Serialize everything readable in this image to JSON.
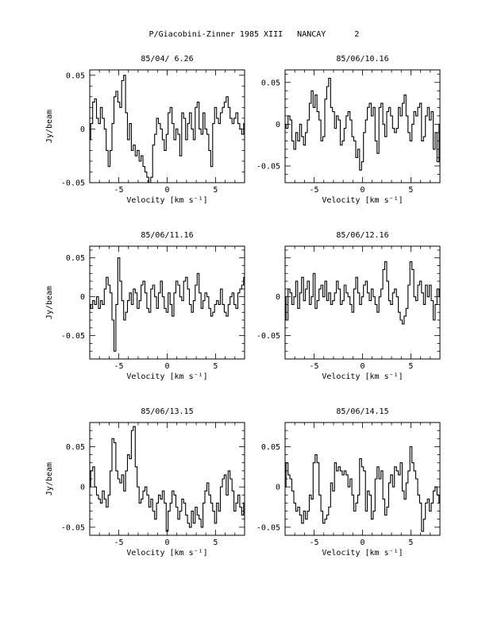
{
  "title": "P/Giacobini-Zinner 1985 XIII   NANCAY      2",
  "chart_data": [
    {
      "type": "line",
      "title": "85/04/ 6.26",
      "xlabel": "Velocity [km s⁻¹]",
      "ylabel": "Jy/beam",
      "xlim": [
        -8,
        8
      ],
      "ylim": [
        -0.05,
        0.055
      ],
      "xticks": [
        "-5",
        "0",
        "5"
      ],
      "yticks": [
        "0.05",
        "0",
        "-0.05"
      ],
      "ytick_values": [
        0.05,
        0,
        -0.05
      ],
      "x": [
        -8,
        -7.8,
        -7.6,
        -7.4,
        -7.2,
        -7,
        -6.8,
        -6.6,
        -6.4,
        -6.2,
        -6,
        -5.8,
        -5.6,
        -5.4,
        -5.2,
        -5,
        -4.8,
        -4.6,
        -4.4,
        -4.2,
        -4,
        -3.8,
        -3.6,
        -3.4,
        -3.2,
        -3,
        -2.8,
        -2.6,
        -2.4,
        -2.2,
        -2,
        -1.8,
        -1.6,
        -1.4,
        -1.2,
        -1,
        -0.8,
        -0.6,
        -0.4,
        -0.2,
        0,
        0.2,
        0.4,
        0.6,
        0.8,
        1,
        1.2,
        1.4,
        1.6,
        1.8,
        2,
        2.2,
        2.4,
        2.6,
        2.8,
        3,
        3.2,
        3.4,
        3.6,
        3.8,
        4,
        4.2,
        4.4,
        4.6,
        4.8,
        5,
        5.2,
        5.4,
        5.6,
        5.8,
        6,
        6.2,
        6.4,
        6.6,
        6.8,
        7,
        7.2,
        7.4,
        7.6,
        7.8,
        8
      ],
      "y": [
        -0.01,
        0.005,
        0.025,
        0.028,
        0.01,
        0.005,
        0.02,
        0.01,
        0.0,
        -0.02,
        -0.035,
        -0.02,
        0.005,
        0.03,
        0.035,
        0.025,
        0.02,
        0.045,
        0.05,
        0.015,
        -0.01,
        0.005,
        -0.02,
        -0.015,
        -0.025,
        -0.02,
        -0.03,
        -0.025,
        -0.035,
        -0.04,
        -0.045,
        -0.05,
        -0.045,
        -0.015,
        -0.005,
        0.01,
        0.005,
        0.0,
        -0.01,
        -0.02,
        -0.005,
        0.015,
        0.02,
        0.005,
        -0.01,
        0.0,
        -0.005,
        -0.025,
        0.015,
        0.01,
        -0.01,
        0.005,
        0.015,
        0.0,
        -0.01,
        0.02,
        0.025,
        0.0,
        -0.005,
        0.015,
        0.0,
        -0.005,
        -0.02,
        -0.035,
        0.005,
        0.02,
        0.01,
        0.005,
        0.015,
        0.02,
        0.025,
        0.03,
        0.02,
        0.01,
        0.005,
        0.01,
        0.015,
        0.005,
        0.0,
        -0.005,
        0.005
      ]
    },
    {
      "type": "line",
      "title": "85/06/10.16",
      "xlabel": "Velocity [km s⁻¹]",
      "ylabel": "",
      "xlim": [
        -8,
        8
      ],
      "ylim": [
        -0.07,
        0.065
      ],
      "xticks": [
        "-5",
        "0",
        "5"
      ],
      "yticks": [
        "0.05",
        "0",
        "-0.05"
      ],
      "ytick_values": [
        0.05,
        0,
        -0.05
      ],
      "x": [
        -8,
        -7.8,
        -7.6,
        -7.4,
        -7.2,
        -7,
        -6.8,
        -6.6,
        -6.4,
        -6.2,
        -6,
        -5.8,
        -5.6,
        -5.4,
        -5.2,
        -5,
        -4.8,
        -4.6,
        -4.4,
        -4.2,
        -4,
        -3.8,
        -3.6,
        -3.4,
        -3.2,
        -3,
        -2.8,
        -2.6,
        -2.4,
        -2.2,
        -2,
        -1.8,
        -1.6,
        -1.4,
        -1.2,
        -1,
        -0.8,
        -0.6,
        -0.4,
        -0.2,
        0,
        0.2,
        0.4,
        0.6,
        0.8,
        1,
        1.2,
        1.4,
        1.6,
        1.8,
        2,
        2.2,
        2.4,
        2.6,
        2.8,
        3,
        3.2,
        3.4,
        3.6,
        3.8,
        4,
        4.2,
        4.4,
        4.6,
        4.8,
        5,
        5.2,
        5.4,
        5.6,
        5.8,
        6,
        6.2,
        6.4,
        6.6,
        6.8,
        7,
        7.2,
        7.4,
        7.6,
        7.8,
        8
      ],
      "y": [
        0.0,
        -0.005,
        0.01,
        0.005,
        -0.02,
        -0.03,
        -0.01,
        -0.02,
        0.0,
        -0.015,
        -0.025,
        -0.01,
        0.005,
        0.025,
        0.04,
        0.02,
        0.035,
        0.015,
        0.005,
        -0.02,
        -0.015,
        0.03,
        0.045,
        0.055,
        0.02,
        0.015,
        -0.005,
        0.01,
        0.005,
        -0.025,
        -0.02,
        -0.005,
        0.01,
        0.015,
        0.005,
        -0.015,
        -0.02,
        -0.04,
        -0.03,
        -0.055,
        -0.045,
        -0.01,
        0.005,
        0.02,
        0.025,
        0.01,
        0.02,
        -0.02,
        -0.035,
        0.02,
        0.025,
        0.0,
        -0.015,
        0.015,
        0.02,
        0.01,
        -0.005,
        -0.01,
        -0.005,
        0.02,
        0.01,
        0.025,
        0.035,
        0.01,
        -0.01,
        -0.02,
        0.0,
        0.015,
        0.01,
        0.02,
        0.025,
        -0.02,
        -0.015,
        0.01,
        0.02,
        0.005,
        0.015,
        -0.03,
        -0.01,
        -0.045,
        0.0
      ]
    },
    {
      "type": "line",
      "title": "85/06/11.16",
      "xlabel": "Velocity [km s⁻¹]",
      "ylabel": "Jy/beam",
      "xlim": [
        -8,
        8
      ],
      "ylim": [
        -0.08,
        0.065
      ],
      "xticks": [
        "-5",
        "0",
        "5"
      ],
      "yticks": [
        "0.05",
        "0",
        "-0.05"
      ],
      "ytick_values": [
        0.05,
        0,
        -0.05
      ],
      "x": [
        -8,
        -7.8,
        -7.6,
        -7.4,
        -7.2,
        -7,
        -6.8,
        -6.6,
        -6.4,
        -6.2,
        -6,
        -5.8,
        -5.6,
        -5.4,
        -5.2,
        -5,
        -4.8,
        -4.6,
        -4.4,
        -4.2,
        -4,
        -3.8,
        -3.6,
        -3.4,
        -3.2,
        -3,
        -2.8,
        -2.6,
        -2.4,
        -2.2,
        -2,
        -1.8,
        -1.6,
        -1.4,
        -1.2,
        -1,
        -0.8,
        -0.6,
        -0.4,
        -0.2,
        0,
        0.2,
        0.4,
        0.6,
        0.8,
        1,
        1.2,
        1.4,
        1.6,
        1.8,
        2,
        2.2,
        2.4,
        2.6,
        2.8,
        3,
        3.2,
        3.4,
        3.6,
        3.8,
        4,
        4.2,
        4.4,
        4.6,
        4.8,
        5,
        5.2,
        5.4,
        5.6,
        5.8,
        6,
        6.2,
        6.4,
        6.6,
        6.8,
        7,
        7.2,
        7.4,
        7.6,
        7.8,
        8
      ],
      "y": [
        -0.01,
        -0.015,
        -0.005,
        -0.01,
        0.0,
        -0.015,
        -0.005,
        -0.01,
        0.01,
        0.025,
        0.015,
        0.005,
        -0.03,
        -0.07,
        -0.01,
        0.05,
        0.02,
        -0.005,
        -0.03,
        -0.02,
        -0.005,
        0.005,
        -0.01,
        0.01,
        0.005,
        -0.015,
        -0.005,
        0.015,
        0.02,
        0.005,
        -0.015,
        -0.02,
        0.01,
        0.015,
        0.0,
        -0.015,
        0.005,
        0.02,
        0.0,
        -0.015,
        -0.02,
        0.005,
        -0.01,
        -0.025,
        0.005,
        0.02,
        0.015,
        0.0,
        -0.005,
        0.02,
        0.025,
        0.01,
        -0.01,
        -0.02,
        -0.005,
        0.015,
        0.03,
        0.005,
        -0.015,
        -0.005,
        0.005,
        0.0,
        -0.015,
        -0.025,
        -0.02,
        -0.01,
        -0.005,
        -0.01,
        0.01,
        -0.01,
        -0.02,
        -0.025,
        -0.01,
        0.0,
        0.005,
        -0.01,
        -0.015,
        0.005,
        0.01,
        0.015,
        0.025
      ]
    },
    {
      "type": "line",
      "title": "85/06/12.16",
      "xlabel": "Velocity [km s⁻¹]",
      "ylabel": "",
      "xlim": [
        -8,
        8
      ],
      "ylim": [
        -0.08,
        0.065
      ],
      "xticks": [
        "-5",
        "0",
        "5"
      ],
      "yticks": [
        "0",
        "-0.05"
      ],
      "ytick_values": [
        0,
        -0.05
      ],
      "x": [
        -8,
        -7.8,
        -7.6,
        -7.4,
        -7.2,
        -7,
        -6.8,
        -6.6,
        -6.4,
        -6.2,
        -6,
        -5.8,
        -5.6,
        -5.4,
        -5.2,
        -5,
        -4.8,
        -4.6,
        -4.4,
        -4.2,
        -4,
        -3.8,
        -3.6,
        -3.4,
        -3.2,
        -3,
        -2.8,
        -2.6,
        -2.4,
        -2.2,
        -2,
        -1.8,
        -1.6,
        -1.4,
        -1.2,
        -1,
        -0.8,
        -0.6,
        -0.4,
        -0.2,
        0,
        0.2,
        0.4,
        0.6,
        0.8,
        1,
        1.2,
        1.4,
        1.6,
        1.8,
        2,
        2.2,
        2.4,
        2.6,
        2.8,
        3,
        3.2,
        3.4,
        3.6,
        3.8,
        4,
        4.2,
        4.4,
        4.6,
        4.8,
        5,
        5.2,
        5.4,
        5.6,
        5.8,
        6,
        6.2,
        6.4,
        6.6,
        6.8,
        7,
        7.2,
        7.4,
        7.6,
        7.8,
        8
      ],
      "y": [
        0.0,
        -0.03,
        0.01,
        0.005,
        -0.01,
        0.0,
        0.02,
        -0.015,
        0.005,
        0.025,
        -0.005,
        0.01,
        0.02,
        -0.01,
        0.0,
        0.03,
        -0.015,
        -0.005,
        0.01,
        0.015,
        0.0,
        0.02,
        -0.005,
        0.005,
        -0.01,
        -0.005,
        0.005,
        0.02,
        0.01,
        -0.01,
        -0.005,
        0.015,
        0.005,
        0.0,
        -0.01,
        -0.02,
        0.01,
        0.025,
        0.005,
        -0.01,
        0.0,
        0.015,
        0.02,
        0.005,
        -0.005,
        0.01,
        0.0,
        -0.01,
        -0.02,
        0.0,
        0.01,
        0.035,
        0.045,
        0.02,
        -0.005,
        -0.01,
        0.005,
        0.01,
        0.0,
        -0.02,
        -0.03,
        -0.035,
        -0.025,
        -0.015,
        0.015,
        0.045,
        0.035,
        0.0,
        -0.005,
        0.015,
        0.02,
        0.005,
        -0.01,
        0.015,
        0.0,
        0.015,
        -0.005,
        -0.03,
        -0.01,
        0.01,
        0.0
      ]
    },
    {
      "type": "line",
      "title": "85/06/13.15",
      "xlabel": "Velocity [km s⁻¹]",
      "ylabel": "Jy/beam",
      "xlim": [
        -8,
        8
      ],
      "ylim": [
        -0.06,
        0.08
      ],
      "xticks": [
        "-5",
        "0",
        "5"
      ],
      "yticks": [
        "0.05",
        "0",
        "-0.05"
      ],
      "ytick_values": [
        0.05,
        0,
        -0.05
      ],
      "x": [
        -8,
        -7.8,
        -7.6,
        -7.4,
        -7.2,
        -7,
        -6.8,
        -6.6,
        -6.4,
        -6.2,
        -6,
        -5.8,
        -5.6,
        -5.4,
        -5.2,
        -5,
        -4.8,
        -4.6,
        -4.4,
        -4.2,
        -4,
        -3.8,
        -3.6,
        -3.4,
        -3.2,
        -3,
        -2.8,
        -2.6,
        -2.4,
        -2.2,
        -2,
        -1.8,
        -1.6,
        -1.4,
        -1.2,
        -1,
        -0.8,
        -0.6,
        -0.4,
        -0.2,
        0,
        0.2,
        0.4,
        0.6,
        0.8,
        1,
        1.2,
        1.4,
        1.6,
        1.8,
        2,
        2.2,
        2.4,
        2.6,
        2.8,
        3,
        3.2,
        3.4,
        3.6,
        3.8,
        4,
        4.2,
        4.4,
        4.6,
        4.8,
        5,
        5.2,
        5.4,
        5.6,
        5.8,
        6,
        6.2,
        6.4,
        6.6,
        6.8,
        7,
        7.2,
        7.4,
        7.6,
        7.8,
        8
      ],
      "y": [
        0.0,
        0.02,
        0.025,
        0.0,
        -0.01,
        -0.015,
        -0.02,
        -0.005,
        -0.015,
        -0.025,
        -0.01,
        0.02,
        0.06,
        0.055,
        0.02,
        0.01,
        0.005,
        0.015,
        -0.005,
        0.02,
        0.04,
        0.035,
        0.07,
        0.075,
        0.025,
        0.0,
        -0.02,
        -0.015,
        -0.005,
        0.0,
        -0.01,
        -0.025,
        -0.015,
        -0.03,
        -0.04,
        -0.02,
        -0.01,
        -0.015,
        -0.005,
        -0.02,
        -0.055,
        -0.03,
        -0.02,
        -0.005,
        -0.01,
        -0.025,
        -0.04,
        -0.03,
        -0.015,
        -0.02,
        -0.035,
        -0.045,
        -0.05,
        -0.03,
        -0.045,
        -0.025,
        -0.035,
        -0.04,
        -0.05,
        -0.02,
        -0.005,
        0.005,
        -0.01,
        -0.02,
        -0.03,
        -0.045,
        -0.02,
        -0.03,
        0.0,
        0.01,
        0.015,
        -0.01,
        0.02,
        0.01,
        -0.005,
        -0.03,
        -0.02,
        -0.01,
        -0.025,
        -0.035,
        -0.02
      ]
    },
    {
      "type": "line",
      "title": "85/06/14.15",
      "xlabel": "Velocity [km s⁻¹]",
      "ylabel": "",
      "xlim": [
        -8,
        8
      ],
      "ylim": [
        -0.06,
        0.08
      ],
      "xticks": [
        "-5",
        "0",
        "5"
      ],
      "yticks": [
        "0.05",
        "0",
        "-0.05"
      ],
      "ytick_values": [
        0.05,
        0,
        -0.05
      ],
      "x": [
        -8,
        -7.8,
        -7.6,
        -7.4,
        -7.2,
        -7,
        -6.8,
        -6.6,
        -6.4,
        -6.2,
        -6,
        -5.8,
        -5.6,
        -5.4,
        -5.2,
        -5,
        -4.8,
        -4.6,
        -4.4,
        -4.2,
        -4,
        -3.8,
        -3.6,
        -3.4,
        -3.2,
        -3,
        -2.8,
        -2.6,
        -2.4,
        -2.2,
        -2,
        -1.8,
        -1.6,
        -1.4,
        -1.2,
        -1,
        -0.8,
        -0.6,
        -0.4,
        -0.2,
        0,
        0.2,
        0.4,
        0.6,
        0.8,
        1,
        1.2,
        1.4,
        1.6,
        1.8,
        2,
        2.2,
        2.4,
        2.6,
        2.8,
        3,
        3.2,
        3.4,
        3.6,
        3.8,
        4,
        4.2,
        4.4,
        4.6,
        4.8,
        5,
        5.2,
        5.4,
        5.6,
        5.8,
        6,
        6.2,
        6.4,
        6.6,
        6.8,
        7,
        7.2,
        7.4,
        7.6,
        7.8,
        8
      ],
      "y": [
        0.0,
        0.03,
        0.015,
        0.01,
        -0.005,
        -0.02,
        -0.03,
        -0.025,
        -0.035,
        -0.045,
        -0.03,
        -0.04,
        -0.03,
        -0.01,
        -0.015,
        0.03,
        0.04,
        0.03,
        -0.01,
        -0.03,
        -0.045,
        -0.04,
        -0.035,
        -0.025,
        0.005,
        -0.005,
        0.03,
        0.02,
        0.025,
        0.02,
        0.015,
        0.02,
        0.015,
        0.0,
        0.01,
        -0.01,
        -0.03,
        -0.02,
        -0.01,
        0.035,
        0.025,
        0.02,
        -0.03,
        -0.005,
        -0.01,
        -0.04,
        -0.03,
        0.01,
        0.025,
        0.01,
        0.02,
        -0.015,
        -0.035,
        -0.025,
        0.005,
        0.015,
        0.0,
        0.025,
        0.02,
        0.015,
        0.03,
        -0.005,
        -0.015,
        0.005,
        0.02,
        0.05,
        0.03,
        0.02,
        0.01,
        -0.01,
        -0.02,
        -0.055,
        -0.04,
        -0.02,
        -0.015,
        -0.03,
        -0.02,
        -0.005,
        0.0,
        -0.01,
        -0.02
      ]
    }
  ]
}
